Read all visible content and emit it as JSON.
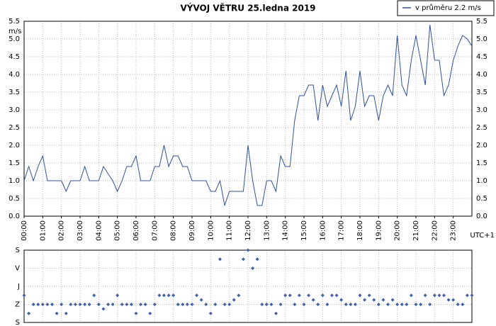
{
  "chart_data": [
    {
      "type": "line",
      "title": "VÝVOJ VĚTRU  25.ledna 2019",
      "y_label": "m/s",
      "x_label": "UTC+1",
      "grid": true,
      "legend": "top-right",
      "x": [
        0,
        0.25,
        0.5,
        0.75,
        1,
        1.25,
        1.5,
        1.75,
        2,
        2.25,
        2.5,
        2.75,
        3,
        3.25,
        3.5,
        3.75,
        4,
        4.25,
        4.5,
        4.75,
        5,
        5.25,
        5.5,
        5.75,
        6,
        6.25,
        6.5,
        6.75,
        7,
        7.25,
        7.5,
        7.75,
        8,
        8.25,
        8.5,
        8.75,
        9,
        9.25,
        9.5,
        9.75,
        10,
        10.25,
        10.5,
        10.75,
        11,
        11.25,
        11.5,
        11.75,
        12,
        12.25,
        12.5,
        12.75,
        13,
        13.25,
        13.5,
        13.75,
        14,
        14.25,
        14.5,
        14.75,
        15,
        15.25,
        15.5,
        15.75,
        16,
        16.25,
        16.5,
        16.75,
        17,
        17.25,
        17.5,
        17.75,
        18,
        18.25,
        18.5,
        18.75,
        19,
        19.25,
        19.5,
        19.75,
        20,
        20.25,
        20.5,
        20.75,
        21,
        21.25,
        21.5,
        21.75,
        22,
        22.25,
        22.5,
        22.75,
        23,
        23.25,
        23.5,
        23.75,
        24
      ],
      "series": [
        {
          "name": "v průměru 2.2 m/s",
          "color": "#2f4f9f",
          "values": [
            1.0,
            1.4,
            1.0,
            1.4,
            1.7,
            1.0,
            1.0,
            1.0,
            1.0,
            0.7,
            1.0,
            1.0,
            1.0,
            1.4,
            1.0,
            1.0,
            1.0,
            1.4,
            1.2,
            1.0,
            0.7,
            1.0,
            1.4,
            1.4,
            1.7,
            1.0,
            1.0,
            1.0,
            1.4,
            1.4,
            2.0,
            1.4,
            1.7,
            1.7,
            1.4,
            1.4,
            1.0,
            1.0,
            1.0,
            1.0,
            0.7,
            0.7,
            1.0,
            0.3,
            0.7,
            0.7,
            0.7,
            0.7,
            2.0,
            1.0,
            0.3,
            0.3,
            1.0,
            1.0,
            0.7,
            1.7,
            1.4,
            1.4,
            2.7,
            3.4,
            3.4,
            3.7,
            3.7,
            2.7,
            3.7,
            3.1,
            3.4,
            3.7,
            3.1,
            4.1,
            2.7,
            3.1,
            4.1,
            3.1,
            3.4,
            3.4,
            2.7,
            3.4,
            3.7,
            3.4,
            5.1,
            3.7,
            3.4,
            4.4,
            5.1,
            4.4,
            3.7,
            5.4,
            4.4,
            4.4,
            3.4,
            3.7,
            4.4,
            4.8,
            5.1,
            5.0,
            4.8
          ]
        }
      ],
      "xlim": [
        0,
        24
      ],
      "xticks": [
        {
          "value": 0,
          "label": "00:00"
        },
        {
          "value": 1,
          "label": "01:00"
        },
        {
          "value": 2,
          "label": "02:00"
        },
        {
          "value": 3,
          "label": "03:00"
        },
        {
          "value": 4,
          "label": "04:00"
        },
        {
          "value": 5,
          "label": "05:00"
        },
        {
          "value": 6,
          "label": "06:00"
        },
        {
          "value": 7,
          "label": "07:00"
        },
        {
          "value": 8,
          "label": "08:00"
        },
        {
          "value": 9,
          "label": "09:00"
        },
        {
          "value": 10,
          "label": "10:00"
        },
        {
          "value": 11,
          "label": "11:00"
        },
        {
          "value": 12,
          "label": "12:00"
        },
        {
          "value": 13,
          "label": "13:00"
        },
        {
          "value": 14,
          "label": "14:00"
        },
        {
          "value": 15,
          "label": "15:00"
        },
        {
          "value": 16,
          "label": "16:00"
        },
        {
          "value": 17,
          "label": "17:00"
        },
        {
          "value": 18,
          "label": "18:00"
        },
        {
          "value": 19,
          "label": "19:00"
        },
        {
          "value": 20,
          "label": "20:00"
        },
        {
          "value": 21,
          "label": "21:00"
        },
        {
          "value": 22,
          "label": "22:00"
        },
        {
          "value": 23,
          "label": "23:00"
        }
      ],
      "ylim": [
        0,
        5.5
      ],
      "yticks": [
        {
          "value": 0,
          "label": "0.0"
        },
        0.5,
        {
          "value": 1,
          "label": "1.0"
        },
        1.5,
        {
          "value": 2,
          "label": "2.0"
        },
        2.5,
        {
          "value": 3,
          "label": "3.0"
        },
        3.5,
        {
          "value": 4,
          "label": "4.0"
        },
        4.5,
        {
          "value": 5,
          "label": "5.0"
        },
        5.5
      ]
    },
    {
      "type": "scatter",
      "grid": true,
      "color": "#3e5fb0",
      "x": [
        0,
        0.25,
        0.5,
        0.75,
        1,
        1.25,
        1.5,
        1.75,
        2,
        2.25,
        2.5,
        2.75,
        3,
        3.25,
        3.5,
        3.75,
        4,
        4.25,
        4.5,
        4.75,
        5,
        5.25,
        5.5,
        5.75,
        6,
        6.25,
        6.5,
        6.75,
        7,
        7.25,
        7.5,
        7.75,
        8,
        8.25,
        8.5,
        8.75,
        9,
        9.25,
        9.5,
        9.75,
        10,
        10.25,
        10.5,
        10.75,
        11,
        11.25,
        11.5,
        11.75,
        12,
        12.25,
        12.5,
        12.75,
        13,
        13.25,
        13.5,
        13.75,
        14,
        14.25,
        14.5,
        14.75,
        15,
        15.25,
        15.5,
        15.75,
        16,
        16.25,
        16.5,
        16.75,
        17,
        17.25,
        17.5,
        17.75,
        18,
        18.25,
        18.5,
        18.75,
        19,
        19.25,
        19.5,
        19.75,
        20,
        20.25,
        20.5,
        20.75,
        21,
        21.25,
        21.5,
        21.75,
        22,
        22.25,
        22.5,
        22.75,
        23,
        23.25,
        23.5,
        23.75,
        24
      ],
      "values": [
        225,
        315,
        270,
        270,
        270,
        270,
        270,
        315,
        270,
        315,
        270,
        270,
        270,
        270,
        270,
        225,
        270,
        292.5,
        270,
        270,
        225,
        270,
        270,
        270,
        315,
        270,
        270,
        315,
        270,
        225,
        225,
        225,
        225,
        270,
        270,
        270,
        270,
        225,
        247.5,
        270,
        315,
        270,
        45,
        270,
        270,
        247.5,
        225,
        45,
        0,
        90,
        45,
        270,
        270,
        270,
        315,
        270,
        225,
        225,
        270,
        225,
        270,
        225,
        247.5,
        270,
        225,
        270,
        225,
        225,
        247.5,
        270,
        270,
        270,
        225,
        247.5,
        225,
        247.5,
        270,
        247.5,
        270,
        247.5,
        270,
        270,
        270,
        225,
        270,
        270,
        225,
        270,
        225,
        225,
        225,
        247.5,
        247.5,
        270,
        270,
        225,
        225
      ],
      "xlim": [
        0,
        24
      ],
      "ylim": [
        360,
        0
      ],
      "yticks": [
        {
          "value": 0,
          "label": "S"
        },
        {
          "value": 90,
          "label": "V"
        },
        {
          "value": 180,
          "label": "J"
        },
        {
          "value": 270,
          "label": "Z"
        },
        {
          "value": 360,
          "label": "S"
        }
      ]
    }
  ]
}
